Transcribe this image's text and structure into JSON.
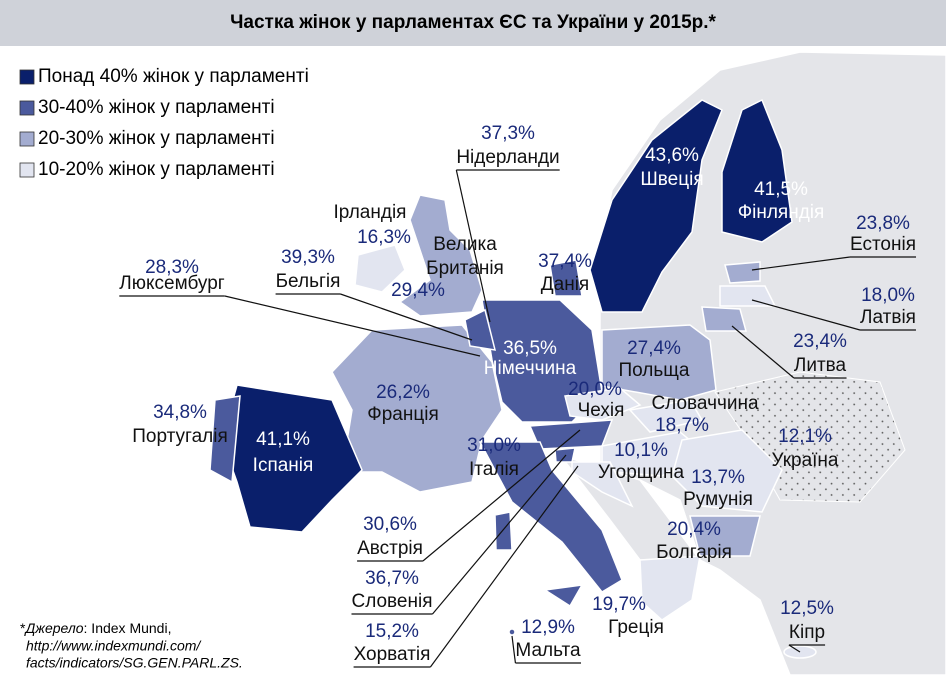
{
  "header": {
    "title": "Частка жінок у парламентах ЄС та України у 2015р.*"
  },
  "legend": [
    "Понад 40% жінок у парламенті",
    "30-40% жінок у парламенті",
    "20-30% жінок у парламенті",
    "10-20% жінок у парламенті"
  ],
  "countries": [
    {
      "name": "Нідерланди",
      "value": "37,3%"
    },
    {
      "name": "Ірландія",
      "value": "16,3%"
    },
    {
      "name": [
        "Велика",
        "Британія"
      ],
      "value": "29,4%"
    },
    {
      "name": "Бельгія",
      "value": "39,3%"
    },
    {
      "name": "Люксембург",
      "value": "28,3%"
    },
    {
      "name": "Данія",
      "value": "37,4%"
    },
    {
      "name": "Швеція",
      "value": "43,6%"
    },
    {
      "name": "Фінляндія",
      "value": "41,5%"
    },
    {
      "name": "Естонія",
      "value": "23,8%"
    },
    {
      "name": "Латвія",
      "value": "18,0%"
    },
    {
      "name": "Литва",
      "value": "23,4%"
    },
    {
      "name": "Німеччина",
      "value": "36,5%"
    },
    {
      "name": "Польща",
      "value": "27,4%"
    },
    {
      "name": "Франція",
      "value": "26,2%"
    },
    {
      "name": "Чехія",
      "value": "20,0%"
    },
    {
      "name": "Словаччина",
      "value": "18,7%"
    },
    {
      "name": "Португалія",
      "value": "34,8%"
    },
    {
      "name": "Іспанія",
      "value": "41,1%"
    },
    {
      "name": "Італія",
      "value": "31,0%"
    },
    {
      "name": "Угорщина",
      "value": "10,1%"
    },
    {
      "name": "Україна",
      "value": "12,1%"
    },
    {
      "name": "Румунія",
      "value": "13,7%"
    },
    {
      "name": "Болгарія",
      "value": "20,4%"
    },
    {
      "name": "Австрія",
      "value": "30,6%"
    },
    {
      "name": "Словенія",
      "value": "36,7%"
    },
    {
      "name": "Хорватія",
      "value": "15,2%"
    },
    {
      "name": "Мальта",
      "value": "12,9%"
    },
    {
      "name": "Греція",
      "value": "19,7%"
    },
    {
      "name": "Кіпр",
      "value": "12,5%"
    }
  ],
  "source": {
    "label": "Джерело",
    "text": ": Index Mundi,",
    "url_lines": [
      "http://www.indexmundi.com/",
      "facts/indicators/SG.GEN.PARL.ZS."
    ]
  }
}
